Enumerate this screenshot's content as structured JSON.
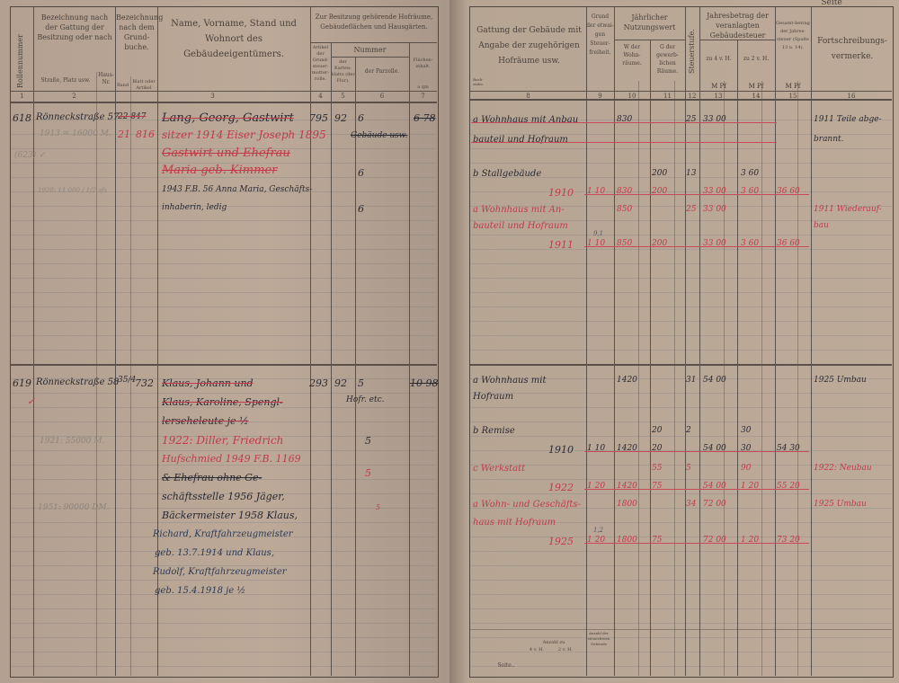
{
  "left_page": {
    "headers": {
      "col1": "Rollennummer",
      "col2": "Bezeichnung nach der Gattung der Besitzung oder nach",
      "col2a": "Straße, Platz usw.",
      "col2b": "Haus-Nr.",
      "col3": "Bezeichnung nach dem Grund-buche.",
      "col3a": "Band",
      "col3b": "Blatt oder Artikel",
      "col4": "Name, Vorname, Stand und Wohnort des Gebäudeeigentümers.",
      "group": "Zur Besitzung gehörende Hofräume, Gebäudeflächen und Hausgärten.",
      "col5": "Artikel der Grund-steuer-mutter-rolle.",
      "nummer": "Nummer",
      "col6": "der Karten-blatts (der Flur).",
      "col7": "der Parzelle.",
      "col8": "Flächen-inhalt.",
      "col8_units": "a  qm",
      "numbers": [
        "1",
        "2",
        "3",
        "4",
        "5",
        "6",
        "7"
      ]
    },
    "entries": [
      {
        "roll": "618",
        "street": "Rönneckstraße 57",
        "note_value": "1913 = 16000 M.",
        "mark": "(623) ✓",
        "faint_note": "1920: 11 000 / 1/2 sfx",
        "band_old": "22 847",
        "band_new": "21",
        "blatt_new": "816",
        "owner_lines": [
          "Lang, Georg, Gastwirt",
          "sitzer 1914 Eiser Joseph 1895",
          "Gastwirt und Ehefrau",
          "Maria geb. Kimmer",
          "1943 F.B. 56 Anna Maria, Geschäfts-",
          "inhaberin, ledig"
        ],
        "artikel": "795",
        "flur": "92",
        "parzelle": [
          "6",
          "Gebäude usw.",
          "6",
          "6"
        ],
        "flaeche": "6 78"
      },
      {
        "roll": "619",
        "street": "Rönneckstraße 58",
        "mark": "✓",
        "faint_note": "1921: 55000 M.",
        "faint_note2": "1951: 90000 DM.",
        "band": "35/4",
        "blatt": "732",
        "owner_lines": [
          "Klaus, Johann und",
          "Klaus, Karoline, Spengl-",
          "lerseheleute je ½",
          "1922: Diller, Friedrich",
          "Hufschmied 1949 F.B. 1169",
          "& Ehefrau ohne Ge-",
          "schäftsstelle 1956 Jäger,",
          "Bäckermeister 1958 Klaus,",
          "Richard, Kraftfahrzeugmeister",
          "geb. 13.7.1914 und Klaus,",
          "Rudolf, Kraftfahrzeugmeister",
          "geb. 15.4.1918 je ½"
        ],
        "artikel": "293",
        "flur": "92",
        "parzelle": [
          "5",
          "Hofr. etc.",
          "5",
          "5",
          "5"
        ],
        "flaeche": "10 98"
      }
    ]
  },
  "right_page": {
    "corner": "Seite",
    "headers": {
      "col8": "Gattung der Gebäude mit Angabe der zugehörigen Hofräume usw.",
      "col8a": "Buch-stabe.",
      "col9": "Grund der etwai-gen Steuer-freiheit.",
      "group10": "Jährlicher Nutzungswert",
      "col10": "W der Wohn-räume.",
      "col11": "G der gewerb-lichen Räume.",
      "col12": "Steuerstufe.",
      "group13": "Jahresbetrag der veranlagten Gebäudesteuer",
      "col13": "zu 4 v. H.",
      "col14": "zu 2 v. H.",
      "col15": "Gesamt-betrag der Jahres-steuer (Spalte 13 u. 14).",
      "col16": "Fortschreibungs-vermerke.",
      "currency": "M  Pf",
      "numbers": [
        "8",
        "9",
        "10",
        "11",
        "12",
        "13",
        "14",
        "15",
        "16"
      ]
    },
    "rows": [
      {
        "text": "a  Wohnhaus mit Anbau",
        "w": "830",
        "stufe": "25",
        "s13": "33 00",
        "note": "1911 Teile abge-",
        "color": "black",
        "struck": true
      },
      {
        "text": "bauteil und Hofraum",
        "note": "brannt.",
        "color": "black",
        "struck": true
      },
      {
        "text": "b  Stallgebäude",
        "g": "200",
        "stufe": "13",
        "s14": "3 60",
        "color": "black"
      },
      {
        "text": "1910",
        "frei": "1 10",
        "w": "830",
        "g": "200",
        "s13": "33 00",
        "s14": "3 60",
        "total": "36 60",
        "color": "red"
      },
      {
        "text": "a  Wohnhaus mit An-",
        "w": "850",
        "stufe": "25",
        "s13": "33 00",
        "note": "1911 Wiederauf-",
        "color": "red"
      },
      {
        "text": "bauteil und Hofraum",
        "note": "bau",
        "color": "red"
      },
      {
        "text": "1911",
        "frei": "1 10",
        "w": "850",
        "g": "200",
        "s13": "33 00",
        "s14": "3 60",
        "total": "36 60",
        "color": "red",
        "above": "9,1"
      },
      {
        "text": "a  Wohnhaus mit",
        "w": "1420",
        "stufe": "31",
        "s13": "54 00",
        "note": "1925 Umbau",
        "color": "black"
      },
      {
        "text": "Hofraum",
        "color": "black"
      },
      {
        "text": "b  Remise",
        "g": "20",
        "stufe": "2",
        "s14": "30",
        "color": "black"
      },
      {
        "text": "1910",
        "frei": "1 10",
        "w": "1420",
        "g": "20",
        "s13": "54 00",
        "s14": "30",
        "total": "54 30",
        "color": "black"
      },
      {
        "text": "c  Werkstatt",
        "g": "55",
        "stufe": "5",
        "s14": "90",
        "note": "1922: Neubau",
        "color": "red"
      },
      {
        "text": "1922",
        "frei": "1 20",
        "w": "1420",
        "g": "75",
        "s13": "54 00",
        "s14": "1 20",
        "total": "55 20",
        "color": "red"
      },
      {
        "text": "a  Wohn- und Geschäfts-",
        "w": "1800",
        "stufe": "34",
        "s13": "72 00",
        "note": "1925 Umbau",
        "color": "red"
      },
      {
        "text": "haus mit Hofraum",
        "color": "red"
      },
      {
        "text": "1925",
        "frei": "1 20",
        "w": "1800",
        "g": "75",
        "s13": "72 00",
        "s14": "1 20",
        "total": "73 20",
        "color": "red",
        "above": "1,2"
      }
    ],
    "footer": {
      "seite": "Seite..",
      "anzahl": "Anzahl zu",
      "pct4": "4 v. H.",
      "pct2": "2 v. H.",
      "anzahl_frei": "Anzahl der steuerfreien Gebäude"
    }
  },
  "colors": {
    "paper": "#bca998",
    "ink": "#2a2a33",
    "red_ink": "#c23a4a",
    "rules": "#5a524a"
  }
}
